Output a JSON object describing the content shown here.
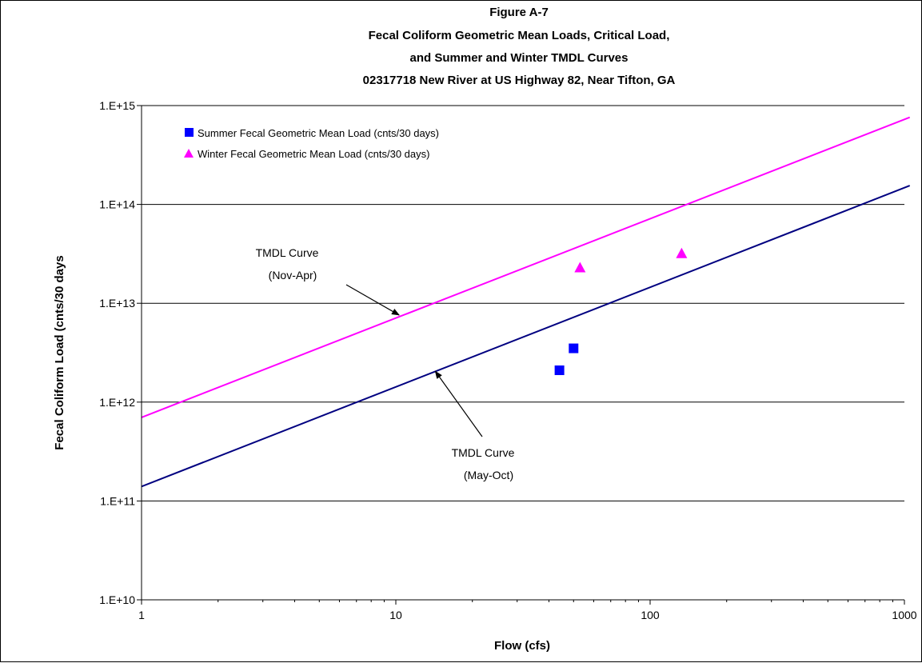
{
  "chart_data": {
    "type": "scatter",
    "title_lines": [
      "Figure A-7",
      "Fecal Coliform Geometric Mean Loads,  Critical Load,",
      "and Summer and Winter TMDL Curves",
      "02317718  New River at US Highway 82, Near Tifton, GA"
    ],
    "xlabel": "Flow   (cfs)",
    "ylabel": "Fecal Coliform Load  (cnts/30 days",
    "x_scale": "log",
    "y_scale": "log",
    "xlim": [
      1,
      1000
    ],
    "ylim": [
      10000000000.0,
      1000000000000000.0
    ],
    "x_ticks": [
      1,
      10,
      100,
      1000
    ],
    "x_tick_labels": [
      "1",
      "10",
      "100",
      "1000"
    ],
    "y_ticks": [
      10000000000.0,
      100000000000.0,
      1000000000000.0,
      10000000000000.0,
      100000000000000.0,
      1000000000000000.0
    ],
    "y_tick_labels": [
      "1.E+10",
      "1.E+11",
      "1.E+12",
      "1.E+13",
      "1.E+14",
      "1.E+15"
    ],
    "grid": "horizontal major",
    "legend_position": "top-left",
    "series": [
      {
        "name": "Summer Fecal Geometric Mean Load (cnts/30 days)",
        "kind": "points",
        "marker": "square",
        "color": "#0000FF",
        "points": [
          [
            44,
            2100000000000.0
          ],
          [
            50,
            3500000000000.0
          ]
        ]
      },
      {
        "name": "Winter Fecal Geometric Mean Load (cnts/30 days)",
        "kind": "points",
        "marker": "triangle",
        "color": "#FF00FF",
        "points": [
          [
            53,
            23000000000000.0
          ],
          [
            133,
            32000000000000.0
          ]
        ]
      },
      {
        "kind": "line",
        "color": "#FF00FF",
        "points": [
          [
            1,
            700000000000.0
          ],
          [
            1050,
            760000000000000.0
          ]
        ]
      },
      {
        "kind": "line",
        "color": "#000080",
        "points": [
          [
            1,
            140000000000.0
          ],
          [
            1050,
            155000000000000.0
          ]
        ]
      }
    ],
    "annotations": [
      {
        "lines": [
          "TMDL Curve",
          "(Nov-Apr)"
        ],
        "arrow_to": [
          10.3,
          7600000000000.0
        ]
      },
      {
        "lines": [
          "TMDL Curve",
          "(May-Oct)"
        ],
        "arrow_to": [
          14.3,
          2050000000000.0
        ]
      }
    ]
  }
}
